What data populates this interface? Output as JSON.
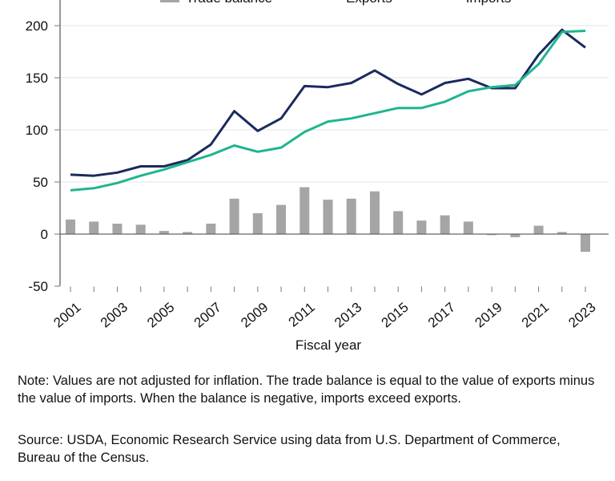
{
  "chart_data": {
    "type": "bar+line",
    "xlabel": "Fiscal year",
    "ylim": [
      -50,
      200
    ],
    "yticks": [
      -50,
      0,
      50,
      100,
      150,
      200
    ],
    "categories": [
      "2001",
      "2002",
      "2003",
      "2004",
      "2005",
      "2006",
      "2007",
      "2008",
      "2009",
      "2010",
      "2011",
      "2012",
      "2013",
      "2014",
      "2015",
      "2016",
      "2017",
      "2018",
      "2019",
      "2020",
      "2021",
      "2022",
      "2023"
    ],
    "xtick_labels": [
      "2001",
      "2003",
      "2005",
      "2007",
      "2009",
      "2011",
      "2013",
      "2015",
      "2017",
      "2019",
      "2021",
      "2023"
    ],
    "legend": [
      "Trade balance",
      "Exports",
      "Imports"
    ],
    "series": [
      {
        "name": "Trade balance",
        "type": "bar",
        "color": "#a5a5a5",
        "values": [
          14,
          12,
          10,
          9,
          3,
          2,
          10,
          34,
          20,
          28,
          45,
          33,
          34,
          41,
          22,
          13,
          18,
          12,
          -1,
          -3,
          8,
          2,
          -17
        ]
      },
      {
        "name": "Exports",
        "type": "line",
        "color": "#1b2a5e",
        "values": [
          57,
          56,
          59,
          65,
          65,
          71,
          86,
          118,
          99,
          111,
          142,
          141,
          145,
          157,
          144,
          134,
          145,
          149,
          140,
          140,
          172,
          196,
          179
        ]
      },
      {
        "name": "Imports",
        "type": "line",
        "color": "#1fb58f",
        "values": [
          42,
          44,
          49,
          56,
          62,
          69,
          76,
          85,
          79,
          83,
          98,
          108,
          111,
          116,
          121,
          121,
          127,
          137,
          141,
          143,
          163,
          194,
          195
        ]
      }
    ]
  },
  "note": "Note: Values are not adjusted for inflation. The trade balance is equal to the value of exports minus the value of imports. When the balance is negative, imports exceed exports.",
  "source": "Source: USDA, Economic Research Service using data from U.S. Department of Commerce, Bureau of the Census."
}
